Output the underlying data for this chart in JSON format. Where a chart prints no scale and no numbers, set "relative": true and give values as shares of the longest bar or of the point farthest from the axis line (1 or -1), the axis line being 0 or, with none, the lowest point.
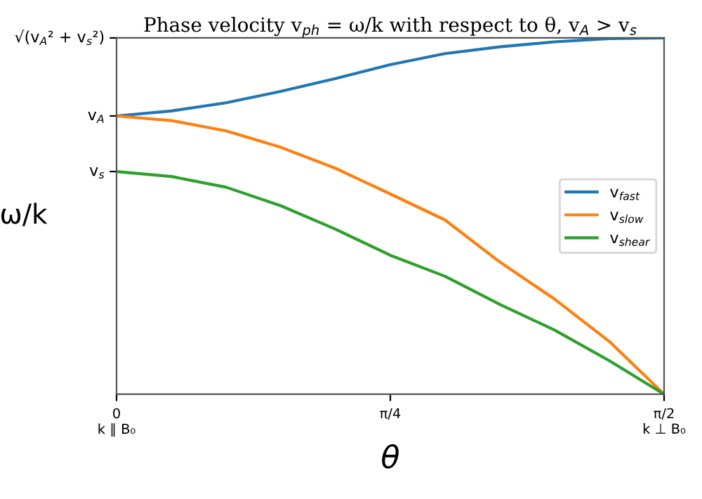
{
  "chart_data": {
    "type": "line",
    "title": "Phase velocity v$_{ph}$ = ω/k with respect to θ, v$_{A}$ > v$_{s}$",
    "xlabel": "θ",
    "ylabel": "ω/k",
    "relative": true,
    "x": [
      0,
      0.1571,
      0.3142,
      0.4712,
      0.6283,
      0.7854,
      0.9425,
      1.0996,
      1.2566,
      1.4137,
      1.5708
    ],
    "series": [
      {
        "name": "v$_{fast}$",
        "color": "#1f77b4",
        "values": [
          0.781,
          0.795,
          0.818,
          0.85,
          0.886,
          0.925,
          0.956,
          0.975,
          0.989,
          0.998,
          1
        ]
      },
      {
        "name": "v$_{slow}$",
        "color": "#ff7f0e",
        "values": [
          0.781,
          0.768,
          0.739,
          0.693,
          0.634,
          0.562,
          0.489,
          0.371,
          0.267,
          0.148,
          0
        ]
      },
      {
        "name": "v$_{shear}$",
        "color": "#2ca02c",
        "values": [
          0.625,
          0.611,
          0.581,
          0.529,
          0.463,
          0.39,
          0.331,
          0.252,
          0.18,
          0.094,
          0
        ]
      }
    ],
    "annotations": [
      {
        "text": "v$_{s}$",
        "x": 0,
        "y": 0.625
      },
      {
        "text": "v$_{A}$",
        "x": 0,
        "y": 0.781
      },
      "√(v$_{A}$² + v$_{s}$²)"
    ],
    "xlim": [
      0,
      1.5708
    ],
    "xticks": [
      {
        "value": 0,
        "label": "0\nk ∥ B₀"
      },
      {
        "value": 0.7854,
        "label": "π/4"
      },
      {
        "value": 1.5708,
        "label": "π/2\nk ⊥ B₀"
      }
    ],
    "legend": "right",
    "grid": false,
    "marker": "none",
    "line_style": "solid"
  }
}
